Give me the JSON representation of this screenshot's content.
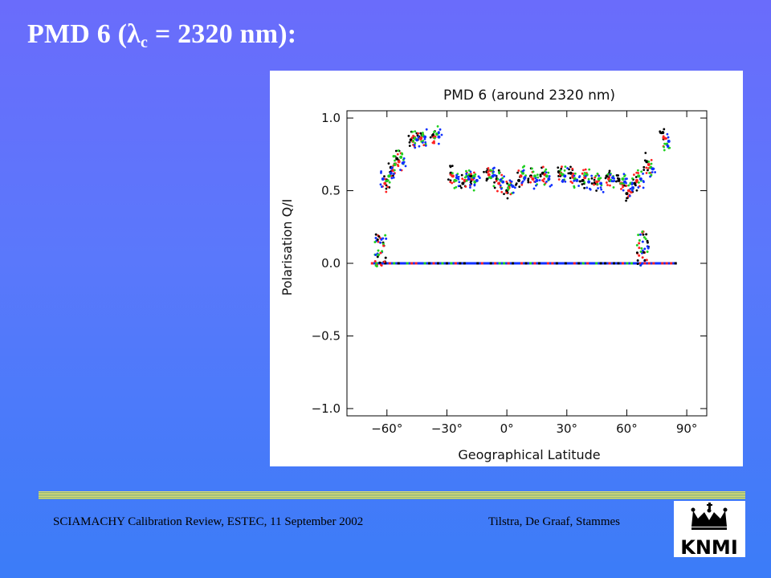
{
  "slide": {
    "title_prefix": "PMD 6 (",
    "title_symbol": "λ",
    "title_subscript": "c",
    "title_suffix": " = 2320 nm):"
  },
  "footer": {
    "left": "SCIAMACHY Calibration Review, ESTEC, 11 September 2002",
    "right": "Tilstra, De Graaf, Stammes"
  },
  "logo": {
    "text": "KNMI",
    "icon": "crown-icon"
  },
  "chart_data": {
    "type": "scatter",
    "title": "PMD 6 (around 2320 nm)",
    "xlabel": "Geographical Latitude",
    "ylabel": "Polarisation Q/I",
    "xlim": [
      -80,
      100
    ],
    "ylim": [
      -1.05,
      1.05
    ],
    "x_ticks": [
      -60,
      -30,
      0,
      30,
      60,
      90
    ],
    "x_tick_labels": [
      "−60°",
      "−30°",
      "0°",
      "30°",
      "60°",
      "90°"
    ],
    "y_ticks": [
      1.0,
      0.5,
      0.0,
      -0.5,
      -1.0
    ],
    "y_tick_labels": [
      "1.0",
      "0.5",
      "0.0",
      "−0.5",
      "−1.0"
    ],
    "series_colors": [
      "#000000",
      "#ff2020",
      "#20d020",
      "#1030ff"
    ],
    "series": [
      {
        "name": "",
        "x": [
          -60,
          -58,
          -55,
          -48,
          -44,
          -37,
          -28,
          -22,
          -18,
          -10,
          -5,
          0,
          6,
          12,
          18,
          26,
          32,
          38,
          44,
          50,
          56,
          60,
          64,
          70,
          78
        ],
        "y": [
          0.57,
          0.66,
          0.72,
          0.85,
          0.87,
          0.88,
          0.62,
          0.55,
          0.6,
          0.63,
          0.58,
          0.5,
          0.57,
          0.6,
          0.62,
          0.63,
          0.62,
          0.57,
          0.55,
          0.6,
          0.57,
          0.48,
          0.55,
          0.7,
          0.9
        ]
      },
      {
        "name": "",
        "x": [
          -61,
          -57,
          -54,
          -47,
          -43,
          -36,
          -27,
          -21,
          -17,
          -9,
          -4,
          1,
          7,
          13,
          19,
          27,
          33,
          39,
          45,
          51,
          57,
          61,
          65,
          71,
          79
        ],
        "y": [
          0.55,
          0.64,
          0.7,
          0.84,
          0.86,
          0.87,
          0.6,
          0.57,
          0.58,
          0.61,
          0.55,
          0.52,
          0.6,
          0.58,
          0.61,
          0.62,
          0.6,
          0.59,
          0.56,
          0.58,
          0.55,
          0.5,
          0.57,
          0.68,
          0.86
        ]
      },
      {
        "name": "",
        "x": [
          -59,
          -56,
          -53,
          -46,
          -42,
          -35,
          -26,
          -20,
          -16,
          -8,
          -3,
          2,
          8,
          14,
          20,
          28,
          34,
          40,
          46,
          52,
          58,
          62,
          66,
          72,
          80
        ],
        "y": [
          0.6,
          0.68,
          0.73,
          0.86,
          0.88,
          0.89,
          0.57,
          0.6,
          0.56,
          0.59,
          0.57,
          0.54,
          0.62,
          0.6,
          0.6,
          0.61,
          0.58,
          0.61,
          0.58,
          0.57,
          0.58,
          0.55,
          0.6,
          0.66,
          0.82
        ]
      },
      {
        "name": "",
        "x": [
          -62,
          -58,
          -52,
          -45,
          -41,
          -34,
          -25,
          -19,
          -15,
          -7,
          -2,
          3,
          9,
          15,
          21,
          29,
          35,
          41,
          47,
          53,
          59,
          63,
          67,
          73,
          81
        ],
        "y": [
          0.58,
          0.62,
          0.69,
          0.85,
          0.87,
          0.87,
          0.59,
          0.58,
          0.57,
          0.6,
          0.56,
          0.53,
          0.59,
          0.57,
          0.58,
          0.6,
          0.57,
          0.56,
          0.55,
          0.59,
          0.56,
          0.52,
          0.58,
          0.65,
          0.84
        ]
      }
    ],
    "zero_band": {
      "x_range": [
        -68,
        85
      ],
      "y": 0.0
    },
    "spikes": [
      {
        "x": -63,
        "y_max": 0.22
      },
      {
        "x": 68,
        "y_max": 0.24
      }
    ],
    "grid": false,
    "legend": "none"
  }
}
